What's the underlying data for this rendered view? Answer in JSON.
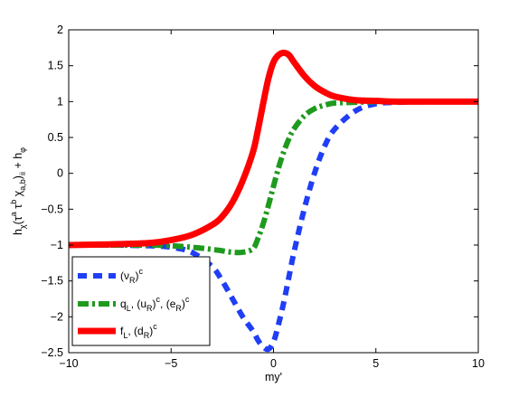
{
  "chart_data": {
    "type": "line",
    "xlabel": "my'",
    "ylabel_parts": [
      "h",
      "χ",
      "(τ",
      "a",
      " τ",
      "b",
      " χ",
      "a,b",
      ")",
      "ii",
      " + h",
      "φ"
    ],
    "xlim": [
      -10,
      10
    ],
    "ylim": [
      -2.5,
      2
    ],
    "xticks": [
      -10,
      -5,
      0,
      5,
      10
    ],
    "yticks": [
      -2.5,
      -2,
      -1.5,
      -1,
      -0.5,
      0,
      0.5,
      1,
      1.5,
      2
    ],
    "x": [
      -10,
      -8,
      -6,
      -5,
      -4,
      -3,
      -2.5,
      -2,
      -1.5,
      -1,
      -0.75,
      -0.5,
      -0.25,
      0,
      0.25,
      0.5,
      0.75,
      1,
      1.5,
      2,
      2.5,
      3,
      4,
      5,
      6,
      8,
      10
    ],
    "legend_position": "bottom-left",
    "grid": false,
    "series": [
      {
        "legend_parts": [
          [
            "(ν",
            ""
          ],
          [
            "R",
            "sub"
          ],
          [
            ")",
            ""
          ],
          [
            "c",
            "sup"
          ]
        ],
        "color": "#1f3ef5",
        "style": "dashed",
        "values": [
          -1,
          -1,
          -1.01,
          -1.03,
          -1.1,
          -1.3,
          -1.5,
          -1.75,
          -2.0,
          -2.2,
          -2.33,
          -2.42,
          -2.45,
          -2.35,
          -2.1,
          -1.8,
          -1.45,
          -1.1,
          -0.5,
          0,
          0.38,
          0.62,
          0.87,
          0.97,
          0.99,
          1,
          1
        ]
      },
      {
        "legend_parts": [
          [
            "q",
            ""
          ],
          [
            "L",
            "sub"
          ],
          [
            ", (u",
            ""
          ],
          [
            "R",
            "sub"
          ],
          [
            ")",
            ""
          ],
          [
            "c",
            "sup"
          ],
          [
            ", (e",
            ""
          ],
          [
            "R",
            "sub"
          ],
          [
            ")",
            ""
          ],
          [
            "c",
            "sup"
          ]
        ],
        "color": "#1e9a1e",
        "style": "dashdot",
        "values": [
          -1,
          -1,
          -1,
          -1.01,
          -1.03,
          -1.06,
          -1.08,
          -1.1,
          -1.1,
          -1.05,
          -0.9,
          -0.7,
          -0.45,
          -0.18,
          0.08,
          0.3,
          0.48,
          0.62,
          0.8,
          0.9,
          0.95,
          0.98,
          0.99,
          1,
          1,
          1,
          1
        ]
      },
      {
        "legend_parts": [
          [
            "f",
            ""
          ],
          [
            "L",
            "sub"
          ],
          [
            ", (d",
            ""
          ],
          [
            "R",
            "sub"
          ],
          [
            ")",
            ""
          ],
          [
            "c",
            "sup"
          ]
        ],
        "color": "#ff0000",
        "style": "solid",
        "values": [
          -1,
          -0.99,
          -0.97,
          -0.93,
          -0.86,
          -0.72,
          -0.6,
          -0.4,
          -0.1,
          0.3,
          0.62,
          0.98,
          1.32,
          1.55,
          1.65,
          1.68,
          1.65,
          1.55,
          1.36,
          1.22,
          1.13,
          1.07,
          1.02,
          1.01,
          1,
          1,
          1
        ]
      }
    ]
  }
}
